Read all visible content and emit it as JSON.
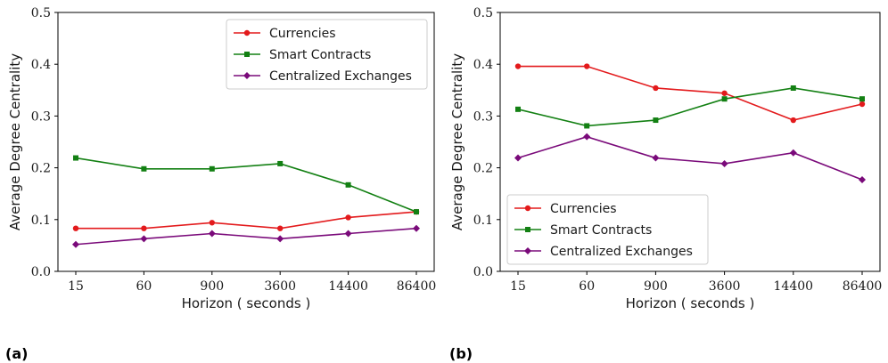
{
  "chart_data": [
    {
      "type": "line",
      "panel_label": "(a)",
      "xlabel": "Horizon ( seconds )",
      "ylabel": "Average Degree Centrality",
      "categories": [
        "15",
        "60",
        "900",
        "3600",
        "14400",
        "86400"
      ],
      "ylim": [
        0,
        0.5
      ],
      "yticks": [
        "0.0",
        "0.1",
        "0.2",
        "0.3",
        "0.4",
        "0.5"
      ],
      "grid": false,
      "legend_position": "top-right",
      "series": [
        {
          "name": "Currencies",
          "color": "#e31a1c",
          "marker": "circle",
          "values": [
            0.083,
            0.083,
            0.094,
            0.083,
            0.104,
            0.115
          ]
        },
        {
          "name": "Smart Contracts",
          "color": "#138013",
          "marker": "square",
          "values": [
            0.219,
            0.198,
            0.198,
            0.208,
            0.167,
            0.115
          ]
        },
        {
          "name": "Centralized Exchanges",
          "color": "#7a0a7a",
          "marker": "diamond",
          "values": [
            0.052,
            0.063,
            0.073,
            0.063,
            0.073,
            0.083
          ]
        }
      ]
    },
    {
      "type": "line",
      "panel_label": "(b)",
      "xlabel": "Horizon ( seconds )",
      "ylabel": "Average Degree Centrality",
      "categories": [
        "15",
        "60",
        "900",
        "3600",
        "14400",
        "86400"
      ],
      "ylim": [
        0,
        0.5
      ],
      "yticks": [
        "0.0",
        "0.1",
        "0.2",
        "0.3",
        "0.4",
        "0.5"
      ],
      "grid": false,
      "legend_position": "bottom-left",
      "series": [
        {
          "name": "Currencies",
          "color": "#e31a1c",
          "marker": "circle",
          "values": [
            0.396,
            0.396,
            0.354,
            0.344,
            0.292,
            0.323
          ]
        },
        {
          "name": "Smart Contracts",
          "color": "#138013",
          "marker": "square",
          "values": [
            0.313,
            0.281,
            0.292,
            0.333,
            0.354,
            0.333
          ]
        },
        {
          "name": "Centralized Exchanges",
          "color": "#7a0a7a",
          "marker": "diamond",
          "values": [
            0.219,
            0.26,
            0.219,
            0.208,
            0.229,
            0.177
          ]
        }
      ]
    }
  ]
}
